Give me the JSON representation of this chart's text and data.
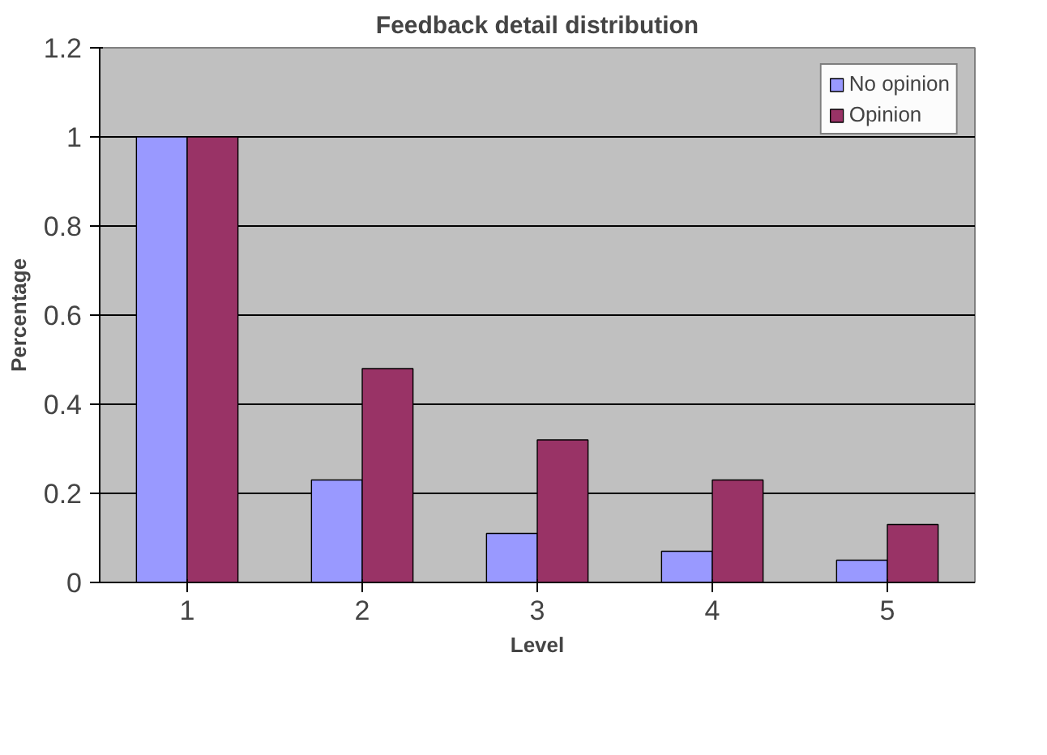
{
  "chart_data": {
    "type": "bar",
    "title": "Feedback detail distribution",
    "xlabel": "Level",
    "ylabel": "Percentage",
    "categories": [
      "1",
      "2",
      "3",
      "4",
      "5"
    ],
    "series": [
      {
        "name": "No opinion",
        "color": "#9999ff",
        "values": [
          1.0,
          0.23,
          0.11,
          0.07,
          0.05
        ]
      },
      {
        "name": "Opinion",
        "color": "#993366",
        "values": [
          1.0,
          0.48,
          0.32,
          0.23,
          0.13
        ]
      }
    ],
    "ylim": [
      0,
      1.2
    ],
    "yticks": [
      0,
      0.2,
      0.4,
      0.6,
      0.8,
      1,
      1.2
    ],
    "grid": "y",
    "legend": "top right"
  }
}
